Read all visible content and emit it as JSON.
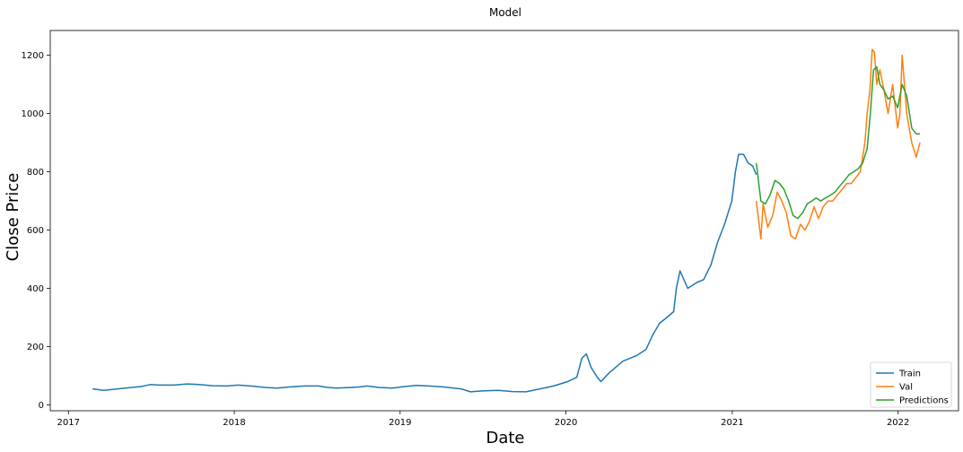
{
  "chart_data": {
    "type": "line",
    "title": "Model",
    "xlabel": "Date",
    "ylabel": "Close Price",
    "x_ticks": [
      "2017",
      "2018",
      "2019",
      "2020",
      "2021",
      "2022"
    ],
    "y_ticks": [
      0,
      200,
      400,
      600,
      800,
      1000,
      1200
    ],
    "xlim": [
      "2016-11-22",
      "2022-05-14"
    ],
    "ylim": [
      -20,
      1285
    ],
    "grid": false,
    "legend_position": "bottom-right",
    "series": [
      {
        "name": "Train",
        "color": "#1f77b4",
        "x": [
          "2017-02-23",
          "2017-03-20",
          "2017-04-20",
          "2017-05-20",
          "2017-06-10",
          "2017-06-30",
          "2017-07-20",
          "2017-08-20",
          "2017-09-20",
          "2017-10-15",
          "2017-11-15",
          "2017-12-15",
          "2018-01-10",
          "2018-02-05",
          "2018-03-10",
          "2018-04-05",
          "2018-05-05",
          "2018-06-05",
          "2018-07-05",
          "2018-07-25",
          "2018-08-15",
          "2018-09-15",
          "2018-10-05",
          "2018-10-20",
          "2018-11-15",
          "2018-12-15",
          "2019-01-05",
          "2019-02-05",
          "2019-03-05",
          "2019-04-05",
          "2019-05-15",
          "2019-06-05",
          "2019-07-01",
          "2019-08-05",
          "2019-09-05",
          "2019-10-05",
          "2019-11-05",
          "2019-12-05",
          "2020-01-05",
          "2020-01-25",
          "2020-02-05",
          "2020-02-15",
          "2020-02-25",
          "2020-03-10",
          "2020-03-18",
          "2020-04-05",
          "2020-05-05",
          "2020-06-05",
          "2020-06-25",
          "2020-07-10",
          "2020-07-25",
          "2020-08-10",
          "2020-08-25",
          "2020-08-31",
          "2020-09-08",
          "2020-09-25",
          "2020-10-15",
          "2020-10-30",
          "2020-11-15",
          "2020-11-30",
          "2020-12-15",
          "2020-12-31",
          "2021-01-08",
          "2021-01-15",
          "2021-01-26",
          "2021-02-05",
          "2021-02-15",
          "2021-02-23"
        ],
        "y": [
          55,
          50,
          55,
          60,
          63,
          70,
          68,
          68,
          72,
          70,
          66,
          65,
          68,
          65,
          60,
          58,
          62,
          65,
          65,
          60,
          58,
          60,
          62,
          65,
          60,
          58,
          62,
          67,
          65,
          62,
          55,
          45,
          48,
          50,
          46,
          45,
          55,
          65,
          80,
          95,
          160,
          175,
          130,
          95,
          80,
          110,
          150,
          170,
          190,
          240,
          280,
          300,
          320,
          400,
          460,
          400,
          420,
          430,
          480,
          560,
          620,
          700,
          800,
          860,
          860,
          830,
          820,
          790
        ]
      },
      {
        "name": "Val",
        "color": "#ff7f0e",
        "x": [
          "2021-02-23",
          "2021-03-05",
          "2021-03-10",
          "2021-03-20",
          "2021-03-31",
          "2021-04-10",
          "2021-04-20",
          "2021-04-30",
          "2021-05-10",
          "2021-05-20",
          "2021-05-31",
          "2021-06-10",
          "2021-06-20",
          "2021-06-30",
          "2021-07-10",
          "2021-07-20",
          "2021-07-31",
          "2021-08-10",
          "2021-08-20",
          "2021-08-31",
          "2021-09-10",
          "2021-09-20",
          "2021-09-30",
          "2021-10-10",
          "2021-10-20",
          "2021-10-25",
          "2021-10-31",
          "2021-11-05",
          "2021-11-10",
          "2021-11-15",
          "2021-11-22",
          "2021-12-01",
          "2021-12-10",
          "2021-12-20",
          "2021-12-31",
          "2022-01-05",
          "2022-01-10",
          "2022-01-20",
          "2022-01-31",
          "2022-02-10",
          "2022-02-18"
        ],
        "y": [
          700,
          570,
          690,
          610,
          650,
          730,
          700,
          660,
          580,
          570,
          620,
          600,
          630,
          680,
          640,
          680,
          700,
          700,
          720,
          740,
          760,
          760,
          780,
          800,
          900,
          1000,
          1080,
          1220,
          1210,
          1100,
          1150,
          1080,
          1000,
          1100,
          950,
          1000,
          1200,
          1000,
          900,
          850,
          900
        ]
      },
      {
        "name": "Predictions",
        "color": "#2ca02c",
        "x": [
          "2021-02-23",
          "2021-03-05",
          "2021-03-15",
          "2021-03-25",
          "2021-04-05",
          "2021-04-15",
          "2021-04-25",
          "2021-05-05",
          "2021-05-15",
          "2021-05-25",
          "2021-06-05",
          "2021-06-15",
          "2021-06-25",
          "2021-07-05",
          "2021-07-15",
          "2021-07-25",
          "2021-08-05",
          "2021-08-15",
          "2021-08-25",
          "2021-09-05",
          "2021-09-15",
          "2021-09-25",
          "2021-10-05",
          "2021-10-15",
          "2021-10-25",
          "2021-11-01",
          "2021-11-08",
          "2021-11-15",
          "2021-11-22",
          "2021-12-01",
          "2021-12-10",
          "2021-12-20",
          "2021-12-31",
          "2022-01-10",
          "2022-01-20",
          "2022-01-31",
          "2022-02-10",
          "2022-02-18"
        ],
        "y": [
          830,
          700,
          690,
          720,
          770,
          760,
          740,
          700,
          650,
          640,
          660,
          690,
          700,
          710,
          700,
          710,
          720,
          730,
          750,
          770,
          790,
          800,
          810,
          830,
          880,
          1000,
          1150,
          1160,
          1100,
          1080,
          1050,
          1060,
          1020,
          1100,
          1060,
          950,
          930,
          930
        ]
      }
    ]
  }
}
